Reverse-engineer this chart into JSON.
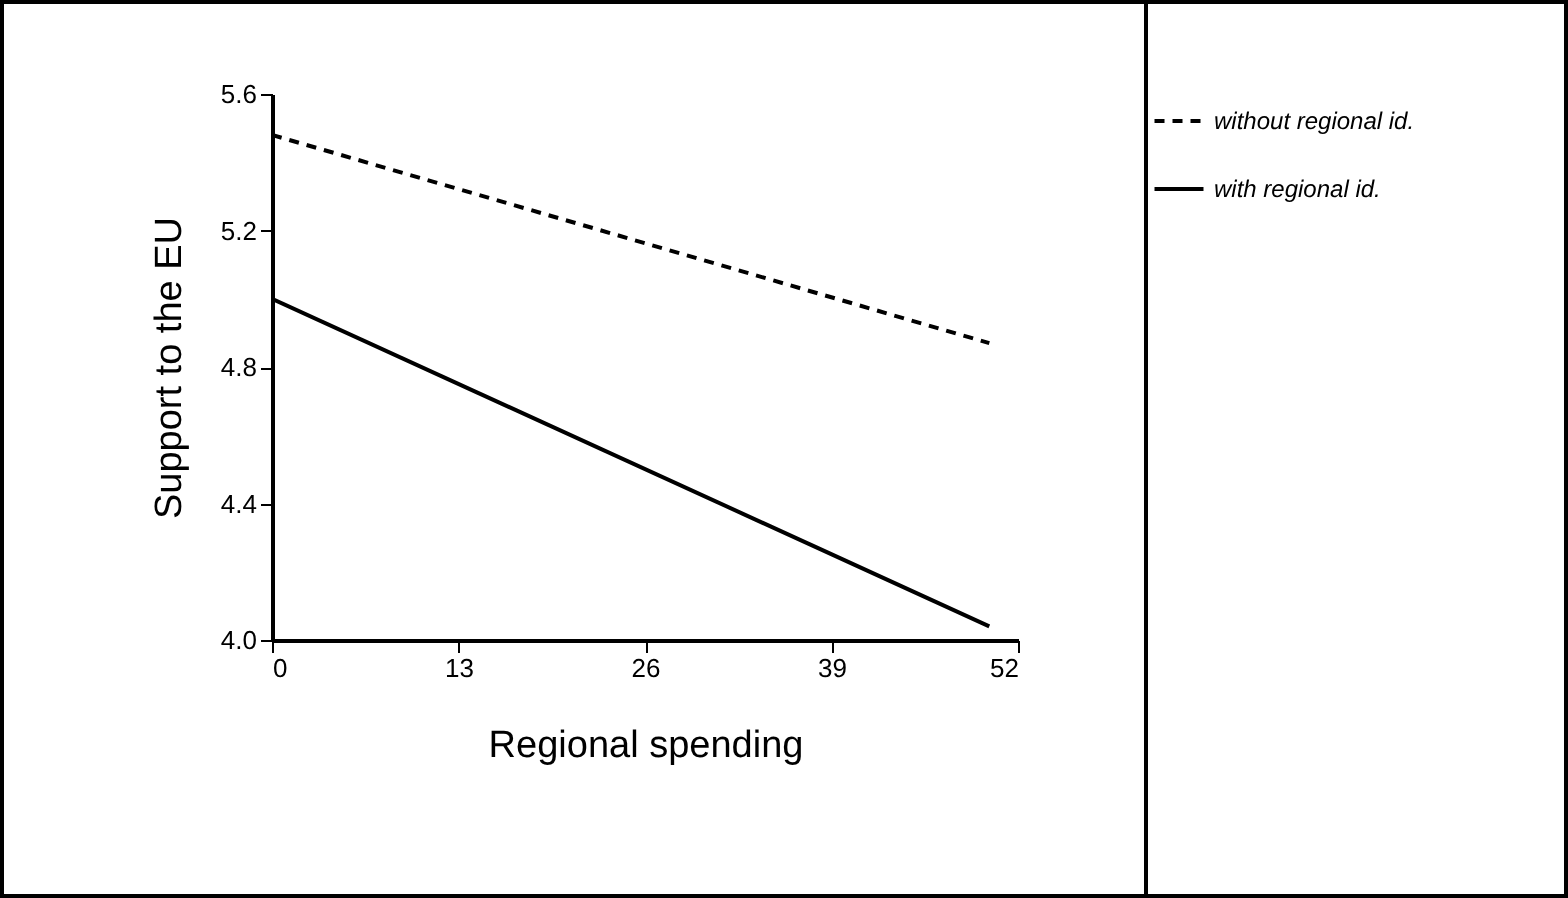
{
  "chart_data": {
    "type": "line",
    "xlabel": "Regional spending",
    "ylabel": "Support to the EU",
    "x": [
      0,
      50
    ],
    "series": [
      {
        "name": "without regional id.",
        "color": "#000000",
        "line_style": "dashed",
        "values": [
          5.48,
          4.87
        ]
      },
      {
        "name": "with regional id.",
        "color": "#000000",
        "line_style": "solid",
        "values": [
          5.0,
          4.04
        ]
      }
    ],
    "xlim": [
      0,
      52
    ],
    "xticks": [
      0,
      13,
      26,
      39,
      52
    ],
    "ylim": [
      4.0,
      5.6
    ],
    "yticks": [
      {
        "value": 4.0,
        "label": "4.0"
      },
      4.4,
      4.8,
      5.2,
      5.6
    ],
    "grid": false,
    "legend": "top right",
    "marker": "none"
  }
}
